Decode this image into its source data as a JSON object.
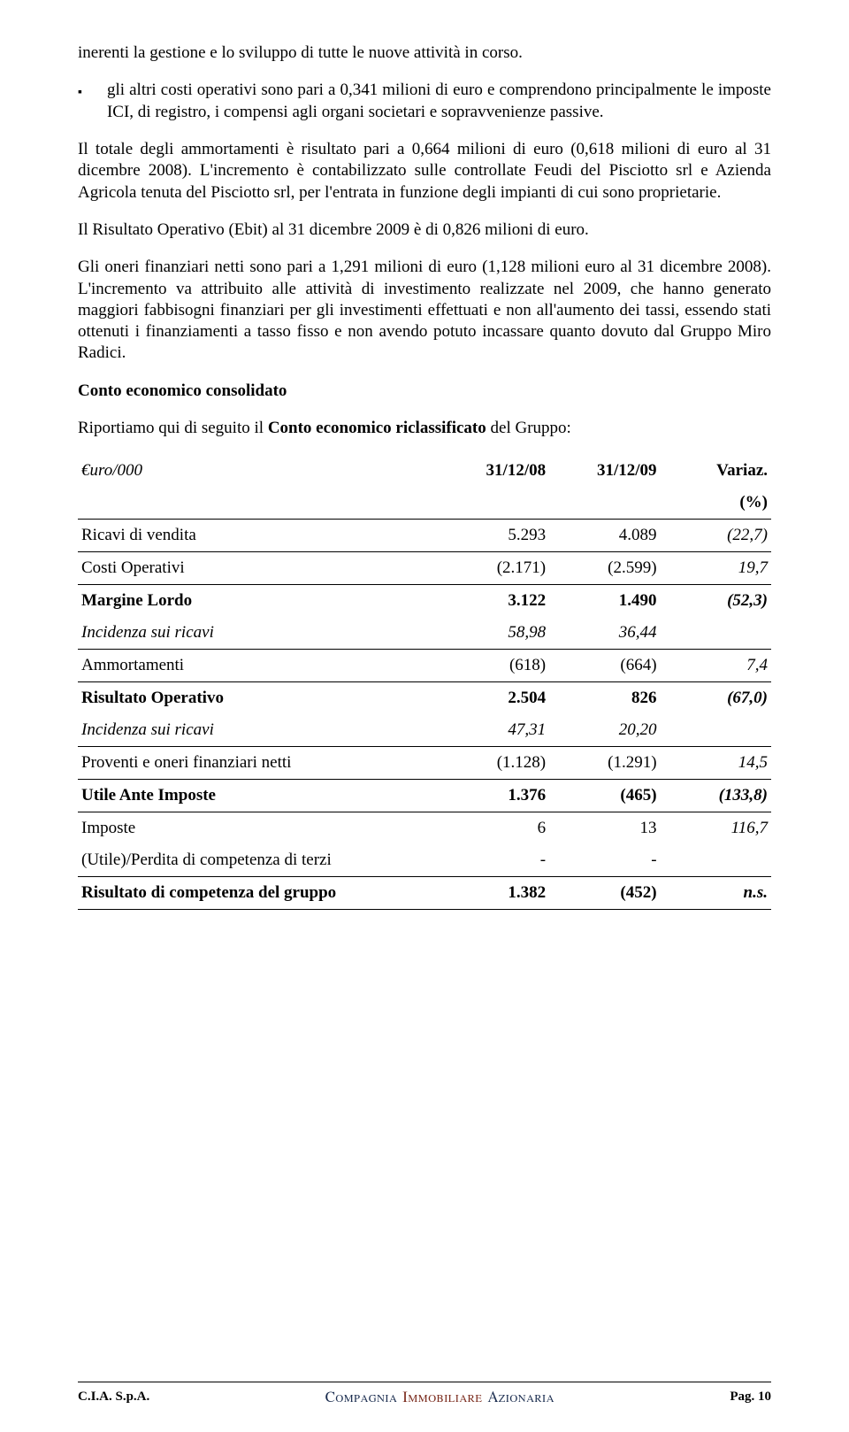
{
  "body": {
    "para_intro": "inerenti la gestione e lo sviluppo di tutte le nuove attività in corso.",
    "bullet_mark": "▪",
    "bullet": "gli altri costi operativi sono pari a 0,341 milioni di euro e comprendono principalmente le imposte ICI, di registro, i compensi agli organi societari e sopravvenienze passive.",
    "para_ammort": "Il totale degli ammortamenti è risultato pari a 0,664 milioni di euro (0,618 milioni di euro al 31 dicembre 2008). L'incremento è contabilizzato sulle controllate Feudi del Pisciotto srl e Azienda Agricola tenuta del Pisciotto srl, per l'entrata in funzione degli impianti di cui sono proprietarie.",
    "para_ebit": "Il Risultato Operativo (Ebit) al 31 dicembre 2009 è di 0,826 milioni di euro.",
    "para_oneri": "Gli oneri finanziari netti sono pari a 1,291 milioni di euro (1,128 milioni euro al 31 dicembre 2008). L'incremento va attribuito alle attività di investimento realizzate nel 2009, che hanno generato maggiori fabbisogni finanziari per gli investimenti effettuati e non all'aumento dei tassi, essendo stati ottenuti i finanziamenti a tasso fisso e non avendo potuto incassare quanto dovuto dal Gruppo Miro Radici.",
    "heading_conto": "Conto economico consolidato",
    "para_riport_pre": "Riportiamo qui di seguito il ",
    "para_riport_bold": "Conto economico riclassificato",
    "para_riport_post": " del Gruppo:"
  },
  "table": {
    "header_unit": "€uro/000",
    "col_08": "31/12/08",
    "col_09": "31/12/09",
    "col_var": "Variaz.",
    "col_pct": "(%)",
    "rows": [
      {
        "label": "Ricavi di vendita",
        "c08": "5.293",
        "c09": "4.089",
        "var": "(22,7)",
        "italic_var": true,
        "border": true
      },
      {
        "label": "Costi Operativi",
        "c08": "(2.171)",
        "c09": "(2.599)",
        "var": "19,7",
        "italic_var": true,
        "border": true
      },
      {
        "label": "Margine Lordo",
        "c08": "3.122",
        "c09": "1.490",
        "var": "(52,3)",
        "bold": true,
        "italic_var": true
      },
      {
        "label": "Incidenza sui ricavi",
        "c08": "58,98",
        "c09": "36,44",
        "var": "",
        "italic_row": true,
        "border": true
      },
      {
        "label": "Ammortamenti",
        "c08": "(618)",
        "c09": "(664)",
        "var": "7,4",
        "italic_var": true,
        "border": true
      },
      {
        "label": "Risultato Operativo",
        "c08": "2.504",
        "c09": "826",
        "var": "(67,0)",
        "bold": true,
        "italic_var": true
      },
      {
        "label": "Incidenza sui ricavi",
        "c08": "47,31",
        "c09": "20,20",
        "var": "",
        "italic_row": true,
        "border": true
      },
      {
        "label": "Proventi e oneri finanziari netti",
        "c08": "(1.128)",
        "c09": "(1.291)",
        "var": "14,5",
        "italic_var": true,
        "border": true
      },
      {
        "label": "Utile Ante Imposte",
        "c08": "1.376",
        "c09": "(465)",
        "var": "(133,8)",
        "bold": true,
        "italic_var": true,
        "border": true
      },
      {
        "label": "Imposte",
        "c08": "6",
        "c09": "13",
        "var": "116,7",
        "italic_var": true
      },
      {
        "label": "(Utile)/Perdita di competenza di terzi",
        "c08": "-",
        "c09": "-",
        "var": "",
        "border": true
      },
      {
        "label": "Risultato di competenza del gruppo",
        "c08": "1.382",
        "c09": "(452)",
        "var": "n.s.",
        "bold": true,
        "italic_var": true,
        "border": true
      }
    ]
  },
  "footer": {
    "left": "C.I.A. S.p.A.",
    "center_c": "Compagnia",
    "center_i": "Immobiliare",
    "center_a": "Azionaria",
    "right": "Pag. 10"
  }
}
